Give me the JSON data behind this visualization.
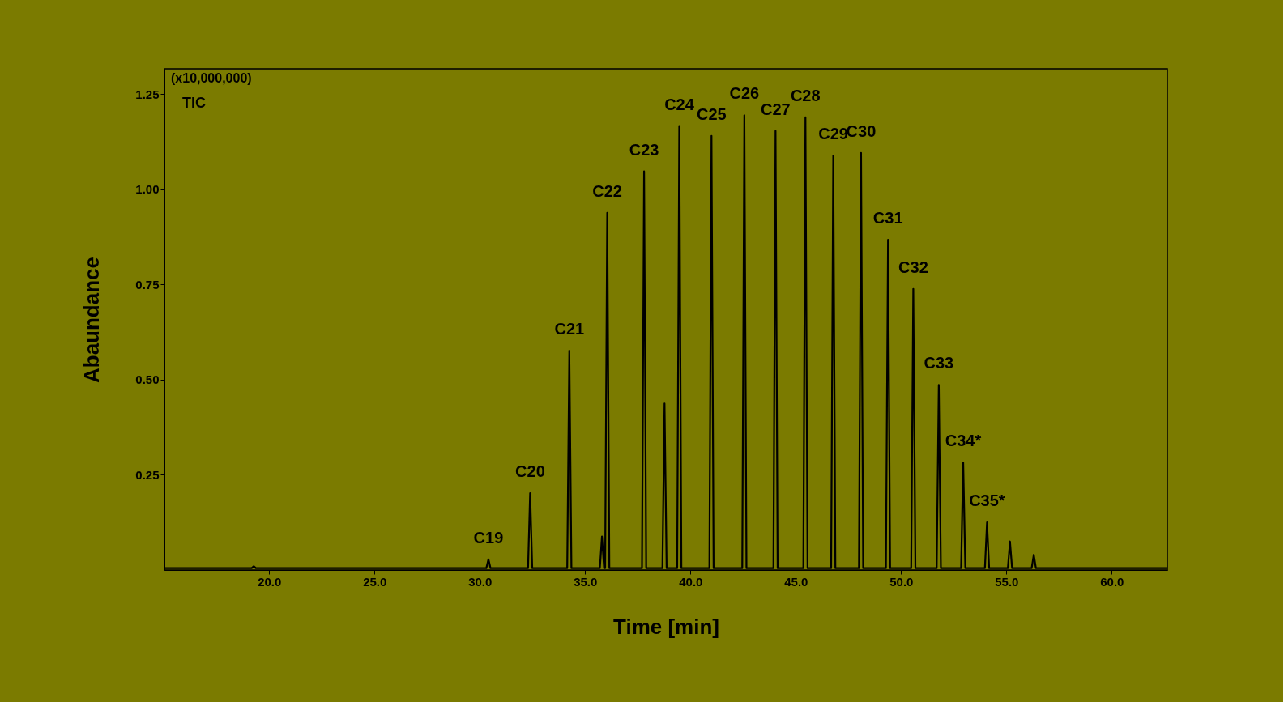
{
  "chart_data": {
    "type": "line",
    "xlabel": "Time [min]",
    "ylabel": "Abaundance",
    "x": [
      15.03,
      19.17,
      19.27,
      19.37,
      30.31,
      30.41,
      30.51,
      32.29,
      32.39,
      32.49,
      34.15,
      34.25,
      34.35,
      35.7,
      35.8,
      35.9,
      35.95,
      36.05,
      36.15,
      37.7,
      37.8,
      37.9,
      38.67,
      38.77,
      38.87,
      39.37,
      39.47,
      39.57,
      40.9,
      41.0,
      41.1,
      42.46,
      42.56,
      42.66,
      43.94,
      44.04,
      44.14,
      45.36,
      45.46,
      45.56,
      46.68,
      46.78,
      46.88,
      48.0,
      48.1,
      48.2,
      49.28,
      49.38,
      49.48,
      50.48,
      50.58,
      50.68,
      51.69,
      51.79,
      51.89,
      52.85,
      52.95,
      53.05,
      53.98,
      54.08,
      54.18,
      55.07,
      55.17,
      55.27,
      56.2,
      56.3,
      56.4,
      62.64
    ],
    "series": [
      {
        "color": "#000000",
        "values": [
          0.005,
          0.005,
          0.01,
          0.005,
          0.005,
          0.028,
          0.005,
          0.005,
          0.202,
          0.005,
          0.005,
          0.576,
          0.005,
          0.005,
          0.088,
          0.005,
          0.005,
          0.938,
          0.005,
          0.005,
          1.047,
          0.005,
          0.005,
          0.437,
          0.005,
          0.005,
          1.166,
          0.005,
          0.005,
          1.14,
          0.005,
          0.005,
          1.194,
          0.005,
          0.005,
          1.153,
          0.005,
          0.005,
          1.189,
          0.005,
          0.005,
          1.088,
          0.005,
          0.005,
          1.095,
          0.005,
          0.005,
          0.867,
          0.005,
          0.005,
          0.738,
          0.005,
          0.005,
          0.486,
          0.005,
          0.005,
          0.282,
          0.005,
          0.005,
          0.125,
          0.005,
          0.005,
          0.075,
          0.005,
          0.005,
          0.04,
          0.005,
          0.005
        ]
      }
    ],
    "xlim": [
      15.03,
      62.64
    ],
    "ylim": [
      0,
      1.316
    ],
    "xticks": [
      {
        "value": 20,
        "label": "20.0"
      },
      {
        "value": 25,
        "label": "25.0"
      },
      {
        "value": 30,
        "label": "30.0"
      },
      {
        "value": 35,
        "label": "35.0"
      },
      {
        "value": 40,
        "label": "40.0"
      },
      {
        "value": 45,
        "label": "45.0"
      },
      {
        "value": 50,
        "label": "50.0"
      },
      {
        "value": 55,
        "label": "55.0"
      },
      {
        "value": 60,
        "label": "60.0"
      }
    ],
    "yticks": [
      0.25,
      {
        "value": 0.5,
        "label": "0.50"
      },
      0.75,
      {
        "value": 1,
        "label": "1.00"
      },
      1.25
    ],
    "grid": false,
    "marker": "none",
    "line_style": "solid",
    "annotations": [
      "(x10,000,000)",
      "TIC",
      {
        "text": "C19",
        "x": 30.41,
        "y": 0.028
      },
      {
        "text": "C20",
        "x": 32.39,
        "y": 0.202
      },
      {
        "text": "C21",
        "x": 34.25,
        "y": 0.576
      },
      {
        "text": "C22",
        "x": 36.05,
        "y": 0.938
      },
      {
        "text": "C23",
        "x": 37.8,
        "y": 1.047
      },
      {
        "text": "C24",
        "x": 39.47,
        "y": 1.166
      },
      {
        "text": "C25",
        "x": 41.0,
        "y": 1.14
      },
      {
        "text": "C26",
        "x": 42.56,
        "y": 1.194
      },
      {
        "text": "C27",
        "x": 44.04,
        "y": 1.153
      },
      {
        "text": "C28",
        "x": 45.46,
        "y": 1.189
      },
      {
        "text": "C29",
        "x": 46.78,
        "y": 1.088
      },
      {
        "text": "C30",
        "x": 48.1,
        "y": 1.095
      },
      {
        "text": "C31",
        "x": 49.38,
        "y": 0.867
      },
      {
        "text": "C32",
        "x": 50.58,
        "y": 0.738
      },
      {
        "text": "C33",
        "x": 51.79,
        "y": 0.486
      },
      {
        "text": "C34*",
        "x": 52.95,
        "y": 0.282
      },
      {
        "text": "C35*",
        "x": 54.08,
        "y": 0.125
      }
    ]
  }
}
